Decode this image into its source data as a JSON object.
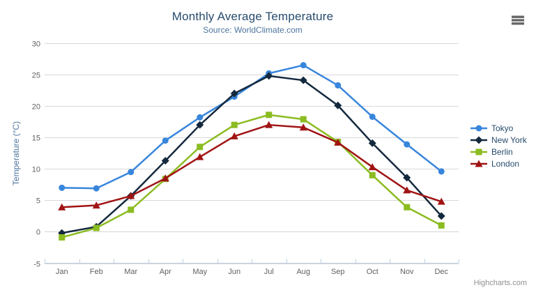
{
  "header": {
    "title": "Monthly Average Temperature",
    "subtitle": "Source: WorldClimate.com"
  },
  "export_menu": {
    "icon": "hamburger-icon",
    "color": "#666666"
  },
  "credits": {
    "text": "Highcharts.com"
  },
  "chart_data": {
    "type": "line",
    "title": "Monthly Average Temperature",
    "subtitle": "Source: WorldClimate.com",
    "categories": [
      "Jan",
      "Feb",
      "Mar",
      "Apr",
      "May",
      "Jun",
      "Jul",
      "Aug",
      "Sep",
      "Oct",
      "Nov",
      "Dec"
    ],
    "xlabel": "",
    "ylabel": "Temperature (°C)",
    "ylim": [
      -5,
      30
    ],
    "ytick_step": 5,
    "grid": true,
    "legend_position": "right",
    "series": [
      {
        "name": "Tokyo",
        "color": "#3886dc",
        "marker": "circle",
        "values": [
          7.0,
          6.9,
          9.5,
          14.5,
          18.2,
          21.5,
          25.2,
          26.5,
          23.3,
          18.3,
          13.9,
          9.6
        ]
      },
      {
        "name": "New York",
        "color": "#14293e",
        "marker": "diamond",
        "values": [
          -0.2,
          0.8,
          5.7,
          11.3,
          17.0,
          22.0,
          24.8,
          24.1,
          20.1,
          14.1,
          8.6,
          2.5
        ]
      },
      {
        "name": "Berlin",
        "color": "#8bbc21",
        "marker": "square",
        "values": [
          -0.9,
          0.6,
          3.5,
          8.4,
          13.5,
          17.0,
          18.6,
          17.9,
          14.3,
          9.0,
          3.9,
          1.0
        ]
      },
      {
        "name": "London",
        "color": "#a01313",
        "marker": "triangle",
        "values": [
          3.9,
          4.2,
          5.7,
          8.5,
          11.9,
          15.2,
          17.0,
          16.6,
          14.2,
          10.3,
          6.6,
          4.8
        ]
      }
    ],
    "style": {
      "grid_color": "#d8d8d8",
      "axis_line_color": "#c0d0e0",
      "tick_color": "#c0d0e0",
      "label_color": "#606060",
      "axis_title_color": "#4d759e",
      "legend_text_color": "#274b6d"
    }
  }
}
